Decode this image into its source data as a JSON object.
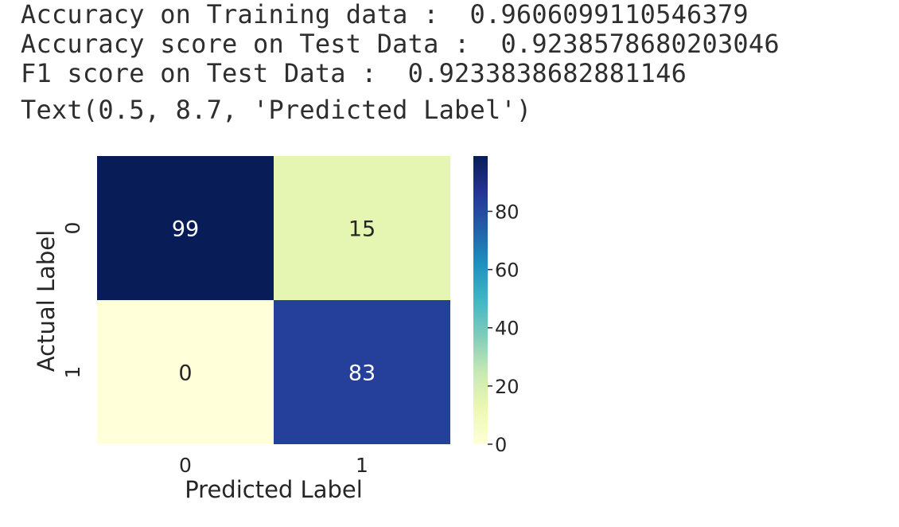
{
  "output": {
    "lines": [
      {
        "label": "Accuracy on Training data : ",
        "value": "0.9606099110546379"
      },
      {
        "label": "Accuracy score on Test Data : ",
        "value": "0.9238578680203046"
      },
      {
        "label": "F1 score on Test Data : ",
        "value": "0.9233838682881146"
      }
    ],
    "repr": "Text(0.5, 8.7, 'Predicted Label')"
  },
  "chart_data": {
    "type": "heatmap",
    "xlabel": "Predicted Label",
    "ylabel": "Actual Label",
    "x_categories": [
      "0",
      "1"
    ],
    "y_categories": [
      "0",
      "1"
    ],
    "values": [
      [
        99,
        15
      ],
      [
        0,
        83
      ]
    ],
    "annotations": [
      "99",
      "15",
      "0",
      "83"
    ],
    "colormap": "YlGnBu",
    "colorbar": {
      "min": 0,
      "max": 99,
      "ticks": [
        0,
        20,
        40,
        60,
        80
      ],
      "tick_labels": [
        "0",
        "20",
        "40",
        "60",
        "80"
      ]
    }
  }
}
